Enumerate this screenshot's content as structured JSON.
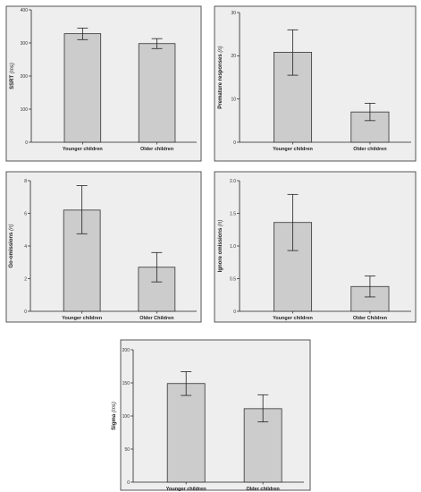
{
  "chart_data": [
    {
      "type": "bar",
      "categories": [
        "Younger children",
        "Older children"
      ],
      "values": [
        328,
        298
      ],
      "errors": [
        [
          310,
          345
        ],
        [
          283,
          313
        ]
      ],
      "ylabel": "SSRT",
      "yunit": "(ms)",
      "ylim": [
        0,
        400
      ],
      "yticks": [
        "0",
        "100",
        "200",
        "300",
        "400"
      ],
      "grid": false
    },
    {
      "type": "bar",
      "categories": [
        "Younger children",
        "Older children"
      ],
      "values": [
        20.8,
        7.0
      ],
      "errors": [
        [
          15.5,
          26.0
        ],
        [
          5.0,
          9.0
        ]
      ],
      "ylabel": "Premature responses",
      "yunit": "(n)",
      "ylim": [
        0,
        30
      ],
      "yticks": [
        "0",
        "10",
        "20",
        "30"
      ],
      "grid": false
    },
    {
      "type": "bar",
      "categories": [
        "Younger children",
        "Older Children"
      ],
      "values": [
        6.2,
        2.7
      ],
      "errors": [
        [
          4.75,
          7.7
        ],
        [
          1.8,
          3.6
        ]
      ],
      "ylabel": "Go-omissions",
      "yunit": "(n)",
      "ylim": [
        0,
        8
      ],
      "yticks": [
        "0",
        "2",
        "4",
        "6",
        "8"
      ],
      "grid": false
    },
    {
      "type": "bar",
      "categories": [
        "Younger children",
        "Older Children"
      ],
      "values": [
        1.36,
        0.38
      ],
      "errors": [
        [
          0.93,
          1.79
        ],
        [
          0.22,
          0.54
        ]
      ],
      "ylabel": "Ignore omissions",
      "yunit": "(n)",
      "ylim": [
        0,
        2.0
      ],
      "yticks": [
        "0",
        "0.5",
        "1.0",
        "1.5",
        "2.0"
      ],
      "grid": false
    },
    {
      "type": "bar",
      "categories": [
        "Younger children",
        "Older children"
      ],
      "values": [
        149,
        111
      ],
      "errors": [
        [
          131,
          167
        ],
        [
          91,
          132
        ]
      ],
      "ylabel": "Sigma",
      "yunit": "(ms)",
      "ylim": [
        0,
        200
      ],
      "yticks": [
        "0",
        "50",
        "100",
        "150",
        "200"
      ],
      "grid": false
    }
  ]
}
